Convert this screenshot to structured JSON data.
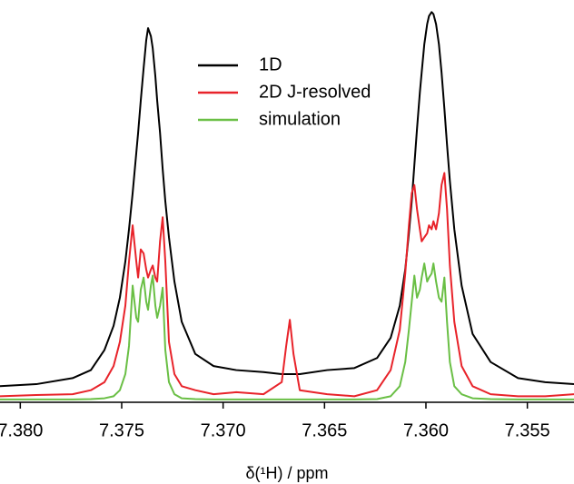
{
  "chart_data": {
    "type": "line",
    "x_label": "δ(¹H) / ppm",
    "x": [
      7.381,
      7.37921,
      7.37742,
      7.37652,
      7.37585,
      7.3754,
      7.37509,
      7.37482,
      7.37464,
      7.37446,
      7.37428,
      7.37419,
      7.37406,
      7.37392,
      7.37379,
      7.3737,
      7.37356,
      7.37347,
      7.37334,
      7.37325,
      7.37311,
      7.37298,
      7.37285,
      7.37267,
      7.3724,
      7.37204,
      7.37137,
      7.37047,
      7.36935,
      7.36801,
      7.36711,
      7.36689,
      7.36671,
      7.36653,
      7.36622,
      7.36487,
      7.36353,
      7.36241,
      7.36174,
      7.36129,
      7.36102,
      7.36084,
      7.3607,
      7.36057,
      7.36044,
      7.3603,
      7.36021,
      7.36008,
      7.35994,
      7.35985,
      7.35972,
      7.35963,
      7.3595,
      7.35936,
      7.35923,
      7.35909,
      7.35896,
      7.35882,
      7.3586,
      7.35824,
      7.3577,
      7.35681,
      7.35546,
      7.35412,
      7.3527
    ],
    "series": [
      {
        "name": "1D",
        "color": "#000000",
        "values": [
          4,
          4.5,
          6,
          8,
          13,
          19,
          26,
          35,
          43,
          52,
          62,
          67,
          75,
          83,
          90,
          93,
          91,
          88,
          81,
          75,
          67,
          58,
          50,
          41,
          30,
          20,
          12,
          9,
          8,
          7.5,
          7,
          7,
          7,
          7,
          7,
          8,
          8.5,
          11,
          16,
          24,
          33,
          42,
          50,
          59,
          68,
          77,
          82,
          89,
          94,
          96,
          97,
          96.5,
          94,
          89,
          82,
          73,
          64,
          55,
          43,
          29,
          17,
          10,
          6,
          5,
          4.5
        ]
      },
      {
        "name": "2D J-resolved",
        "color": "#e8232a",
        "values": [
          1.5,
          1.8,
          2,
          3,
          5,
          9,
          15,
          24,
          35,
          44,
          35,
          31,
          38,
          37,
          33,
          31,
          33,
          34,
          31,
          30,
          40,
          46,
          35,
          15,
          7,
          4,
          3,
          2,
          2.5,
          2,
          5,
          14,
          20.5,
          12,
          3,
          2,
          1.5,
          3,
          8,
          18,
          32,
          44,
          52,
          54,
          48,
          43,
          40,
          41,
          42,
          44,
          43,
          45,
          43,
          47,
          54,
          57,
          48,
          34,
          20,
          9,
          4,
          2,
          1.5,
          1.5,
          2
        ]
      },
      {
        "name": "simulation",
        "color": "#6abf45",
        "values": [
          0.7,
          0.7,
          0.7,
          0.8,
          1,
          1.5,
          3,
          7,
          14,
          29,
          21,
          20,
          28,
          31,
          25,
          23,
          29,
          31.5,
          24,
          21,
          24,
          28.5,
          13,
          5,
          2,
          1,
          0.8,
          0.7,
          0.7,
          0.7,
          0.7,
          0.7,
          0.7,
          0.7,
          0.7,
          0.7,
          0.7,
          0.8,
          1.5,
          4,
          10,
          18,
          25,
          31.5,
          26,
          28,
          31,
          34.5,
          30,
          31,
          32,
          34.5,
          30,
          26,
          25,
          31,
          20,
          10,
          4,
          2,
          1,
          0.8,
          0.7,
          0.7,
          0.7
        ]
      }
    ],
    "xlim": [
      7.381,
      7.3527
    ],
    "xticks": [
      {
        "value": 7.38,
        "label": "7.380"
      },
      7.375,
      {
        "value": 7.37,
        "label": "7.370"
      },
      7.365,
      {
        "value": 7.36,
        "label": "7.360"
      },
      7.355
    ],
    "ylim": [
      0,
      100
    ],
    "legend": "upper center"
  }
}
